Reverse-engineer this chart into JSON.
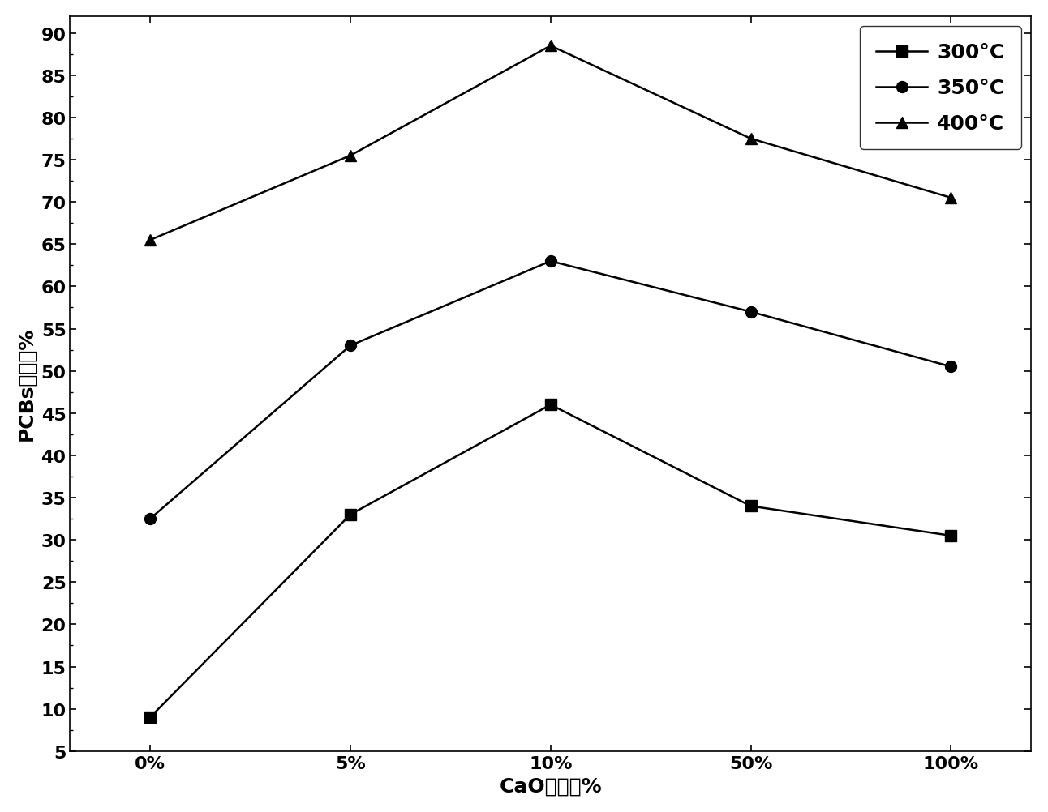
{
  "x_labels": [
    "0%",
    "5%",
    "10%",
    "50%",
    "100%"
  ],
  "x_positions": [
    0,
    1,
    2,
    3,
    4
  ],
  "series": [
    {
      "label": "300°C",
      "values": [
        9,
        33,
        46,
        34,
        30.5
      ],
      "marker": "s",
      "color": "#000000",
      "markersize": 10
    },
    {
      "label": "350°C",
      "values": [
        32.5,
        53,
        63,
        57,
        50.5
      ],
      "marker": "o",
      "color": "#000000",
      "markersize": 10
    },
    {
      "label": "400°C",
      "values": [
        65.5,
        75.5,
        88.5,
        77.5,
        70.5
      ],
      "marker": "^",
      "color": "#000000",
      "markersize": 10
    }
  ],
  "ylabel": "PCBs脉氧率%",
  "xlabel": "CaO添加量%",
  "ylim": [
    5,
    92
  ],
  "yticks": [
    5,
    10,
    15,
    20,
    25,
    30,
    35,
    40,
    45,
    50,
    55,
    60,
    65,
    70,
    75,
    80,
    85,
    90
  ],
  "background_color": "#ffffff",
  "linewidth": 1.8,
  "legend_fontsize": 18,
  "axis_label_fontsize": 18,
  "tick_fontsize": 16,
  "tick_fontweight": "bold"
}
